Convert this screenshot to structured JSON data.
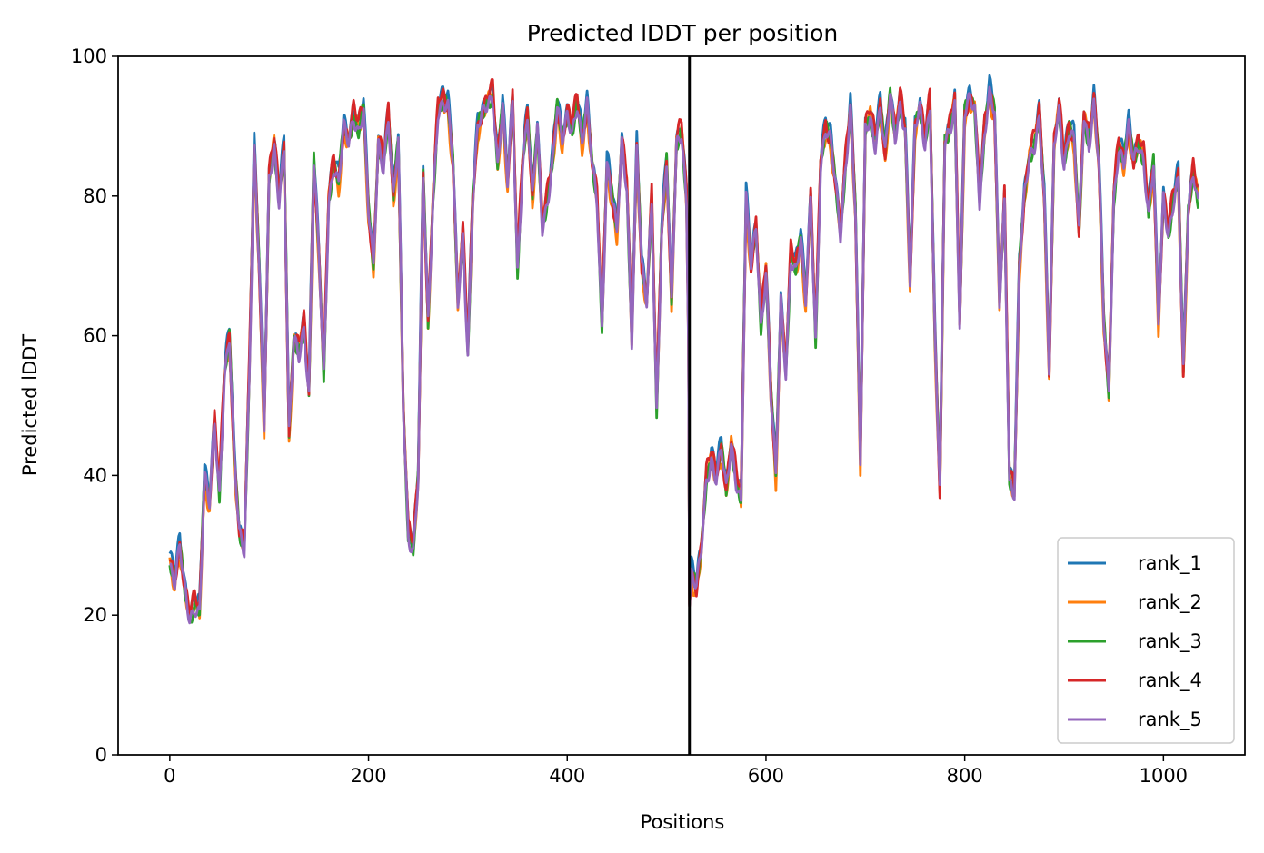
{
  "chart_data": {
    "type": "line",
    "title": "Predicted lDDT per position",
    "xlabel": "Positions",
    "ylabel": "Predicted lDDT",
    "xlim": [
      -52,
      1082
    ],
    "ylim": [
      0,
      100
    ],
    "xticks": [
      0,
      200,
      400,
      600,
      800,
      1000
    ],
    "yticks": [
      0,
      20,
      40,
      60,
      80,
      100
    ],
    "grid": false,
    "legend_position": "lower-right",
    "vline_x": 523,
    "series": [
      {
        "name": "rank_1",
        "color": "#1f77b4",
        "offset": 0.8
      },
      {
        "name": "rank_2",
        "color": "#ff7f0e",
        "offset": -0.8
      },
      {
        "name": "rank_3",
        "color": "#2ca02c",
        "offset": -0.3
      },
      {
        "name": "rank_4",
        "color": "#d62728",
        "offset": 0.3
      },
      {
        "name": "rank_5",
        "color": "#9467bd",
        "offset": -0.5
      }
    ],
    "profile": [
      [
        0,
        28
      ],
      [
        5,
        25
      ],
      [
        10,
        30
      ],
      [
        15,
        24
      ],
      [
        20,
        20
      ],
      [
        25,
        22
      ],
      [
        30,
        21
      ],
      [
        35,
        40
      ],
      [
        40,
        36
      ],
      [
        45,
        48
      ],
      [
        50,
        38
      ],
      [
        55,
        55
      ],
      [
        60,
        60
      ],
      [
        65,
        42
      ],
      [
        70,
        32
      ],
      [
        75,
        30
      ],
      [
        80,
        55
      ],
      [
        85,
        87
      ],
      [
        90,
        70
      ],
      [
        95,
        47
      ],
      [
        100,
        83
      ],
      [
        105,
        88
      ],
      [
        110,
        80
      ],
      [
        115,
        87
      ],
      [
        120,
        46
      ],
      [
        125,
        60
      ],
      [
        130,
        58
      ],
      [
        135,
        62
      ],
      [
        140,
        52
      ],
      [
        145,
        85
      ],
      [
        150,
        72
      ],
      [
        155,
        55
      ],
      [
        160,
        80
      ],
      [
        165,
        85
      ],
      [
        170,
        82
      ],
      [
        175,
        90
      ],
      [
        180,
        88
      ],
      [
        185,
        92
      ],
      [
        190,
        90
      ],
      [
        195,
        93
      ],
      [
        200,
        78
      ],
      [
        205,
        70
      ],
      [
        210,
        88
      ],
      [
        215,
        85
      ],
      [
        220,
        92
      ],
      [
        225,
        80
      ],
      [
        230,
        88
      ],
      [
        235,
        50
      ],
      [
        240,
        32
      ],
      [
        245,
        30
      ],
      [
        250,
        40
      ],
      [
        255,
        83
      ],
      [
        260,
        62
      ],
      [
        265,
        80
      ],
      [
        270,
        93
      ],
      [
        275,
        94
      ],
      [
        280,
        93
      ],
      [
        285,
        85
      ],
      [
        290,
        65
      ],
      [
        295,
        75
      ],
      [
        300,
        58
      ],
      [
        305,
        80
      ],
      [
        310,
        90
      ],
      [
        315,
        92
      ],
      [
        320,
        94
      ],
      [
        325,
        95
      ],
      [
        330,
        85
      ],
      [
        335,
        93
      ],
      [
        340,
        82
      ],
      [
        345,
        94
      ],
      [
        350,
        70
      ],
      [
        355,
        85
      ],
      [
        360,
        92
      ],
      [
        365,
        80
      ],
      [
        370,
        90
      ],
      [
        375,
        76
      ],
      [
        380,
        80
      ],
      [
        385,
        85
      ],
      [
        390,
        93
      ],
      [
        395,
        88
      ],
      [
        400,
        92
      ],
      [
        405,
        90
      ],
      [
        410,
        94
      ],
      [
        415,
        88
      ],
      [
        420,
        93
      ],
      [
        425,
        85
      ],
      [
        430,
        80
      ],
      [
        435,
        62
      ],
      [
        440,
        85
      ],
      [
        445,
        80
      ],
      [
        450,
        75
      ],
      [
        455,
        88
      ],
      [
        460,
        82
      ],
      [
        465,
        60
      ],
      [
        470,
        87
      ],
      [
        475,
        70
      ],
      [
        480,
        65
      ],
      [
        485,
        80
      ],
      [
        490,
        50
      ],
      [
        495,
        75
      ],
      [
        500,
        85
      ],
      [
        505,
        65
      ],
      [
        510,
        88
      ],
      [
        515,
        90
      ],
      [
        520,
        80
      ],
      [
        522,
        60
      ],
      [
        523,
        22
      ],
      [
        525,
        26
      ],
      [
        530,
        24
      ],
      [
        535,
        30
      ],
      [
        540,
        40
      ],
      [
        545,
        43
      ],
      [
        550,
        40
      ],
      [
        555,
        44
      ],
      [
        560,
        38
      ],
      [
        565,
        45
      ],
      [
        570,
        40
      ],
      [
        575,
        37
      ],
      [
        580,
        80
      ],
      [
        585,
        70
      ],
      [
        590,
        76
      ],
      [
        595,
        62
      ],
      [
        600,
        70
      ],
      [
        605,
        52
      ],
      [
        610,
        40
      ],
      [
        615,
        65
      ],
      [
        620,
        55
      ],
      [
        625,
        72
      ],
      [
        630,
        70
      ],
      [
        635,
        74
      ],
      [
        640,
        65
      ],
      [
        645,
        80
      ],
      [
        650,
        60
      ],
      [
        655,
        85
      ],
      [
        660,
        90
      ],
      [
        665,
        88
      ],
      [
        670,
        82
      ],
      [
        675,
        75
      ],
      [
        680,
        85
      ],
      [
        685,
        93
      ],
      [
        690,
        78
      ],
      [
        695,
        42
      ],
      [
        700,
        90
      ],
      [
        705,
        92
      ],
      [
        710,
        88
      ],
      [
        715,
        93
      ],
      [
        720,
        86
      ],
      [
        725,
        95
      ],
      [
        730,
        89
      ],
      [
        735,
        94
      ],
      [
        740,
        90
      ],
      [
        745,
        68
      ],
      [
        750,
        90
      ],
      [
        755,
        93
      ],
      [
        760,
        88
      ],
      [
        765,
        94
      ],
      [
        770,
        60
      ],
      [
        775,
        38
      ],
      [
        780,
        88
      ],
      [
        785,
        90
      ],
      [
        790,
        94
      ],
      [
        795,
        62
      ],
      [
        800,
        92
      ],
      [
        805,
        94
      ],
      [
        810,
        93
      ],
      [
        815,
        80
      ],
      [
        820,
        90
      ],
      [
        825,
        95
      ],
      [
        830,
        92
      ],
      [
        835,
        65
      ],
      [
        840,
        80
      ],
      [
        845,
        40
      ],
      [
        850,
        38
      ],
      [
        855,
        70
      ],
      [
        860,
        80
      ],
      [
        865,
        86
      ],
      [
        870,
        88
      ],
      [
        875,
        92
      ],
      [
        880,
        80
      ],
      [
        885,
        55
      ],
      [
        890,
        88
      ],
      [
        895,
        93
      ],
      [
        900,
        85
      ],
      [
        905,
        90
      ],
      [
        910,
        88
      ],
      [
        915,
        75
      ],
      [
        920,
        92
      ],
      [
        925,
        88
      ],
      [
        930,
        94
      ],
      [
        935,
        85
      ],
      [
        940,
        62
      ],
      [
        945,
        52
      ],
      [
        950,
        80
      ],
      [
        955,
        88
      ],
      [
        960,
        85
      ],
      [
        965,
        90
      ],
      [
        970,
        85
      ],
      [
        975,
        88
      ],
      [
        980,
        86
      ],
      [
        985,
        78
      ],
      [
        990,
        85
      ],
      [
        995,
        62
      ],
      [
        1000,
        80
      ],
      [
        1005,
        75
      ],
      [
        1010,
        80
      ],
      [
        1015,
        83
      ],
      [
        1020,
        55
      ],
      [
        1025,
        78
      ],
      [
        1030,
        84
      ],
      [
        1035,
        80
      ]
    ]
  }
}
